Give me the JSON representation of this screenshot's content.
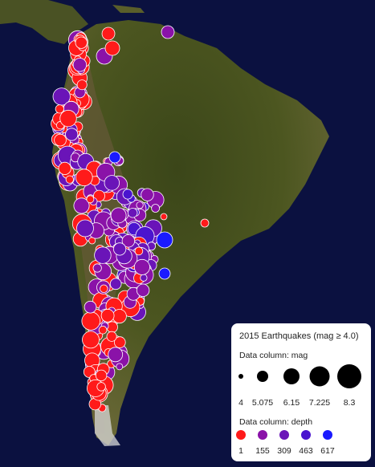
{
  "legend": {
    "title": "2015 Earthquakes (mag ≥ 4.0)",
    "size_heading": "Data column: mag",
    "size_labels": [
      "4",
      "5.075",
      "6.15",
      "7.225",
      "8.3"
    ],
    "color_heading": "Data column: depth",
    "color_labels": [
      "1",
      "155",
      "309",
      "463",
      "617"
    ],
    "colors": [
      "#ff1a1a",
      "#8a12a8",
      "#6a14b8",
      "#4a14cf",
      "#1a1aff"
    ]
  },
  "colors": {
    "ocean": "#0b1140",
    "land_dark": "#3d4a1a",
    "land_mid": "#5a6228",
    "mountains": "#7a6a4a",
    "marker_outline": "#ffffff"
  }
}
